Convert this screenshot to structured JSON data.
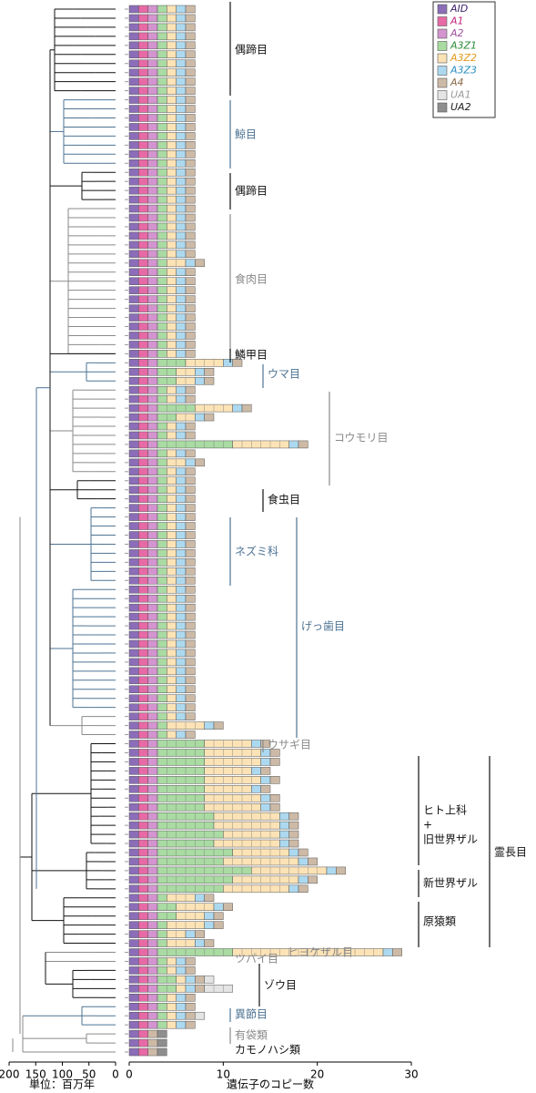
{
  "chart_data": [
    {
      "type": "tree",
      "xlabel": "単位：百万年",
      "xlim": [
        200,
        0
      ],
      "xticks": [
        200,
        150,
        100,
        50,
        0
      ]
    },
    {
      "type": "stacked-bar",
      "xlabel": "遺伝子のコピー数",
      "xlim": [
        0,
        30
      ],
      "xticks": [
        0,
        10,
        20,
        30
      ],
      "series": [
        {
          "name": "AID",
          "color": "#8b6db8",
          "text_color": "#3a1f6a",
          "values": [
            1,
            1,
            1,
            1,
            1,
            1,
            1,
            1,
            1,
            1,
            1,
            1,
            1,
            1,
            1,
            1,
            1,
            1,
            1,
            1,
            1,
            1,
            1,
            1,
            1,
            1,
            1,
            1,
            1,
            1,
            1,
            1,
            1,
            1,
            1,
            1,
            1,
            1,
            1,
            1,
            1,
            1,
            1,
            1,
            1,
            1,
            1,
            1,
            1,
            1,
            1,
            1,
            1,
            1,
            1,
            1,
            1,
            1,
            1,
            1,
            1,
            1,
            1,
            1,
            1,
            1,
            1,
            1,
            1,
            1,
            1,
            1,
            1,
            1,
            1,
            1,
            1,
            1,
            1,
            1,
            1,
            1,
            1,
            1,
            1,
            1,
            1,
            1,
            1,
            1,
            1,
            1,
            1,
            1,
            1,
            1,
            1,
            1,
            1,
            1,
            1,
            1,
            1,
            1,
            1,
            1,
            1,
            1,
            1,
            1,
            1,
            1,
            1,
            1,
            1,
            1
          ]
        },
        {
          "name": "A1",
          "color": "#e76aa6",
          "text_color": "#c0247a",
          "values": [
            1,
            1,
            1,
            1,
            1,
            1,
            1,
            1,
            1,
            1,
            1,
            1,
            1,
            1,
            1,
            1,
            1,
            1,
            1,
            1,
            1,
            1,
            1,
            1,
            1,
            1,
            1,
            1,
            1,
            1,
            1,
            1,
            1,
            1,
            1,
            1,
            1,
            1,
            1,
            1,
            1,
            1,
            1,
            1,
            1,
            1,
            1,
            1,
            1,
            1,
            1,
            1,
            1,
            1,
            1,
            1,
            1,
            1,
            1,
            1,
            1,
            1,
            1,
            1,
            1,
            1,
            1,
            1,
            1,
            1,
            1,
            1,
            1,
            1,
            1,
            1,
            1,
            1,
            1,
            1,
            1,
            1,
            1,
            1,
            1,
            1,
            1,
            1,
            1,
            1,
            1,
            1,
            1,
            1,
            1,
            1,
            1,
            1,
            1,
            1,
            1,
            1,
            1,
            1,
            1,
            1,
            1,
            1,
            1,
            1,
            1,
            1,
            1,
            1,
            1,
            1
          ]
        },
        {
          "name": "A2",
          "color": "#d394cf",
          "text_color": "#a0509c",
          "values": [
            1,
            1,
            1,
            1,
            1,
            1,
            1,
            1,
            1,
            1,
            1,
            1,
            1,
            1,
            1,
            1,
            1,
            1,
            1,
            1,
            1,
            1,
            1,
            1,
            1,
            1,
            1,
            1,
            1,
            1,
            1,
            1,
            1,
            1,
            1,
            1,
            1,
            1,
            1,
            1,
            1,
            1,
            1,
            1,
            1,
            1,
            1,
            1,
            1,
            1,
            1,
            1,
            1,
            1,
            1,
            1,
            1,
            1,
            1,
            1,
            1,
            1,
            1,
            1,
            1,
            1,
            1,
            1,
            1,
            1,
            1,
            1,
            1,
            1,
            1,
            1,
            1,
            1,
            1,
            1,
            1,
            1,
            1,
            1,
            1,
            1,
            1,
            1,
            1,
            1,
            1,
            1,
            1,
            1,
            1,
            1,
            1,
            1,
            1,
            1,
            1,
            1,
            1,
            1,
            1,
            1,
            1,
            1,
            1,
            1,
            1,
            1,
            1,
            0,
            0,
            0
          ]
        },
        {
          "name": "A3Z1",
          "color": "#a9dba2",
          "text_color": "#2e8b3a",
          "values": [
            1,
            1,
            1,
            1,
            1,
            1,
            1,
            1,
            1,
            1,
            1,
            1,
            1,
            1,
            1,
            1,
            1,
            1,
            1,
            1,
            1,
            1,
            1,
            1,
            1,
            1,
            1,
            1,
            1,
            1,
            1,
            1,
            1,
            1,
            1,
            1,
            1,
            1,
            1,
            3,
            2,
            2,
            1,
            1,
            4,
            2,
            1,
            1,
            8,
            1,
            1,
            1,
            1,
            1,
            1,
            1,
            1,
            1,
            1,
            1,
            1,
            1,
            1,
            1,
            1,
            1,
            1,
            1,
            1,
            1,
            1,
            1,
            1,
            1,
            1,
            1,
            1,
            1,
            1,
            1,
            1,
            5,
            5,
            5,
            5,
            5,
            5,
            5,
            5,
            6,
            6,
            7,
            6,
            8,
            7,
            10,
            8,
            7,
            1,
            2,
            2,
            1,
            1,
            1,
            8,
            1,
            1,
            2,
            2,
            1,
            1,
            1,
            1,
            0,
            0,
            0
          ]
        },
        {
          "name": "A3Z2",
          "color": "#fce3b6",
          "text_color": "#e39a1e",
          "values": [
            1,
            1,
            1,
            1,
            1,
            1,
            1,
            1,
            1,
            1,
            1,
            1,
            1,
            1,
            1,
            1,
            1,
            1,
            1,
            1,
            1,
            1,
            1,
            1,
            1,
            1,
            1,
            1,
            2,
            1,
            1,
            1,
            1,
            1,
            1,
            1,
            1,
            1,
            1,
            4,
            2,
            2,
            1,
            1,
            4,
            2,
            1,
            1,
            6,
            1,
            2,
            1,
            1,
            1,
            1,
            1,
            1,
            1,
            1,
            1,
            1,
            1,
            1,
            1,
            1,
            1,
            1,
            1,
            1,
            1,
            1,
            1,
            1,
            1,
            1,
            1,
            1,
            1,
            1,
            4,
            1,
            5,
            6,
            6,
            5,
            6,
            5,
            6,
            6,
            7,
            7,
            6,
            7,
            6,
            8,
            8,
            7,
            7,
            3,
            4,
            3,
            4,
            2,
            3,
            16,
            1,
            1,
            1,
            1,
            1,
            1,
            1,
            1,
            0,
            0,
            0
          ]
        },
        {
          "name": "A3Z3",
          "color": "#acd9ef",
          "text_color": "#2a8fc0",
          "values": [
            1,
            1,
            1,
            1,
            1,
            1,
            1,
            1,
            1,
            1,
            1,
            1,
            1,
            1,
            1,
            1,
            1,
            1,
            1,
            1,
            1,
            1,
            1,
            1,
            1,
            1,
            1,
            1,
            1,
            1,
            1,
            1,
            1,
            1,
            1,
            1,
            1,
            1,
            1,
            1,
            1,
            1,
            1,
            1,
            1,
            1,
            1,
            1,
            1,
            1,
            1,
            1,
            1,
            1,
            1,
            1,
            1,
            1,
            1,
            1,
            1,
            1,
            1,
            1,
            1,
            1,
            1,
            1,
            1,
            1,
            1,
            1,
            1,
            1,
            1,
            1,
            1,
            1,
            1,
            1,
            1,
            1,
            1,
            1,
            1,
            1,
            1,
            1,
            1,
            1,
            1,
            1,
            1,
            1,
            1,
            1,
            1,
            1,
            1,
            1,
            1,
            1,
            1,
            1,
            1,
            1,
            1,
            1,
            1,
            1,
            1,
            1,
            1,
            0,
            0,
            0
          ]
        },
        {
          "name": "A4",
          "color": "#cdbaa6",
          "text_color": "#8a6a48",
          "values": [
            1,
            1,
            1,
            1,
            1,
            1,
            1,
            1,
            1,
            1,
            1,
            1,
            1,
            1,
            1,
            1,
            1,
            1,
            1,
            1,
            1,
            1,
            1,
            1,
            1,
            1,
            1,
            1,
            1,
            1,
            1,
            1,
            1,
            1,
            1,
            1,
            1,
            1,
            1,
            1,
            1,
            1,
            1,
            1,
            1,
            1,
            1,
            1,
            1,
            1,
            1,
            1,
            1,
            1,
            1,
            1,
            1,
            1,
            1,
            1,
            1,
            1,
            1,
            1,
            1,
            1,
            1,
            1,
            1,
            1,
            1,
            1,
            1,
            1,
            1,
            1,
            1,
            1,
            1,
            1,
            1,
            1,
            1,
            1,
            1,
            1,
            1,
            1,
            1,
            1,
            1,
            1,
            1,
            1,
            1,
            1,
            1,
            1,
            1,
            1,
            1,
            1,
            1,
            1,
            1,
            1,
            1,
            1,
            1,
            1,
            1,
            1,
            1,
            1,
            1,
            1
          ]
        },
        {
          "name": "UA1",
          "color": "#e4e4e4",
          "text_color": "#9a9a9a",
          "values": [
            0,
            0,
            0,
            0,
            0,
            0,
            0,
            0,
            0,
            0,
            0,
            0,
            0,
            0,
            0,
            0,
            0,
            0,
            0,
            0,
            0,
            0,
            0,
            0,
            0,
            0,
            0,
            0,
            0,
            0,
            0,
            0,
            0,
            0,
            0,
            0,
            0,
            0,
            0,
            0,
            0,
            0,
            0,
            0,
            0,
            0,
            0,
            0,
            0,
            0,
            0,
            0,
            0,
            0,
            0,
            0,
            0,
            0,
            0,
            0,
            0,
            0,
            0,
            0,
            0,
            0,
            0,
            0,
            0,
            0,
            0,
            0,
            0,
            0,
            0,
            0,
            0,
            0,
            0,
            0,
            0,
            0,
            0,
            0,
            0,
            0,
            0,
            0,
            0,
            0,
            0,
            0,
            0,
            0,
            0,
            0,
            0,
            0,
            0,
            0,
            0,
            0,
            0,
            0,
            0,
            0,
            0,
            1,
            3,
            0,
            0,
            1,
            0,
            0,
            0,
            0
          ]
        },
        {
          "name": "UA2",
          "color": "#8e8e8e",
          "text_color": "#222222",
          "values": [
            0,
            0,
            0,
            0,
            0,
            0,
            0,
            0,
            0,
            0,
            0,
            0,
            0,
            0,
            0,
            0,
            0,
            0,
            0,
            0,
            0,
            0,
            0,
            0,
            0,
            0,
            0,
            0,
            0,
            0,
            0,
            0,
            0,
            0,
            0,
            0,
            0,
            0,
            0,
            0,
            0,
            0,
            0,
            0,
            0,
            0,
            0,
            0,
            0,
            0,
            0,
            0,
            0,
            0,
            0,
            0,
            0,
            0,
            0,
            0,
            0,
            0,
            0,
            0,
            0,
            0,
            0,
            0,
            0,
            0,
            0,
            0,
            0,
            0,
            0,
            0,
            0,
            0,
            0,
            0,
            0,
            0,
            0,
            0,
            0,
            0,
            0,
            0,
            0,
            0,
            0,
            0,
            0,
            0,
            0,
            0,
            0,
            0,
            0,
            0,
            0,
            0,
            0,
            0,
            0,
            0,
            0,
            0,
            0,
            0,
            0,
            0,
            0,
            1,
            1,
            1
          ]
        }
      ],
      "annotations": [
        "偶蹄目",
        "鯨目",
        "偶蹄目",
        "食肉目",
        "鱗甲目",
        "ウマ目",
        "コウモリ目",
        "食虫目",
        "ネズミ科",
        "げっ歯目",
        "ウサギ目",
        "ヒト上科",
        "+",
        "旧世界ザル",
        "新世界ザル",
        "原猿類",
        "霊長目",
        "ヒヨケザル目",
        "ツパイ目",
        "ゾウ目",
        "異節目",
        "有袋類",
        "カモノハシ類"
      ]
    }
  ]
}
